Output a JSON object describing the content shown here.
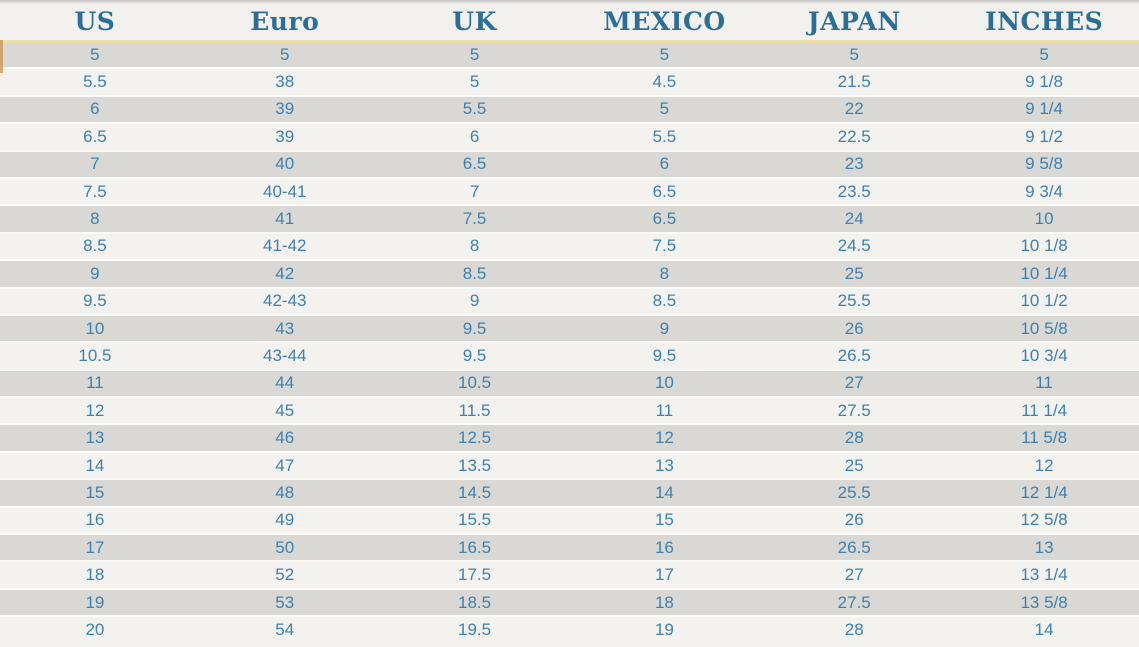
{
  "chart_data": {
    "type": "table",
    "columns": [
      "US",
      "Euro",
      "UK",
      "MEXICO",
      "JAPAN",
      "INCHES"
    ],
    "rows": [
      [
        "5",
        "5",
        "5",
        "5",
        "5",
        "5"
      ],
      [
        "5.5",
        "38",
        "5",
        "4.5",
        "21.5",
        "9 1/8"
      ],
      [
        "6",
        "39",
        "5.5",
        "5",
        "22",
        "9 1/4"
      ],
      [
        "6.5",
        "39",
        "6",
        "5.5",
        "22.5",
        "9 1/2"
      ],
      [
        "7",
        "40",
        "6.5",
        "6",
        "23",
        "9 5/8"
      ],
      [
        "7.5",
        "40-41",
        "7",
        "6.5",
        "23.5",
        "9 3/4"
      ],
      [
        "8",
        "41",
        "7.5",
        "6.5",
        "24",
        "10"
      ],
      [
        "8.5",
        "41-42",
        "8",
        "7.5",
        "24.5",
        "10 1/8"
      ],
      [
        "9",
        "42",
        "8.5",
        "8",
        "25",
        "10 1/4"
      ],
      [
        "9.5",
        "42-43",
        "9",
        "8.5",
        "25.5",
        "10 1/2"
      ],
      [
        "10",
        "43",
        "9.5",
        "9",
        "26",
        "10 5/8"
      ],
      [
        "10.5",
        "43-44",
        "9.5",
        "9.5",
        "26.5",
        "10 3/4"
      ],
      [
        "11",
        "44",
        "10.5",
        "10",
        "27",
        "11"
      ],
      [
        "12",
        "45",
        "11.5",
        "11",
        "27.5",
        "11 1/4"
      ],
      [
        "13",
        "46",
        "12.5",
        "12",
        "28",
        "11 5/8"
      ],
      [
        "14",
        "47",
        "13.5",
        "13",
        "25",
        "12"
      ],
      [
        "15",
        "48",
        "14.5",
        "14",
        "25.5",
        "12 1/4"
      ],
      [
        "16",
        "49",
        "15.5",
        "15",
        "26",
        "12 5/8"
      ],
      [
        "17",
        "50",
        "16.5",
        "16",
        "26.5",
        "13"
      ],
      [
        "18",
        "52",
        "17.5",
        "17",
        "27",
        "13 1/4"
      ],
      [
        "19",
        "53",
        "18.5",
        "18",
        "27.5",
        "13 5/8"
      ],
      [
        "20",
        "54",
        "19.5",
        "19",
        "28",
        "14"
      ]
    ],
    "layout": {
      "grid": "horizontal-stripes",
      "stripe_pattern": "odd-rows-gray"
    }
  },
  "colors": {
    "header_text": "#2d6e96",
    "cell_text": "#3e81ae",
    "header_bg": "#f2f1ee",
    "row_odd": "#d9d8d5",
    "row_even": "#f3f2ef",
    "header_rule_yellow": "#e8e0a6",
    "row_divider": "#fbfbf9",
    "accent_streak": "#d09c5c"
  }
}
